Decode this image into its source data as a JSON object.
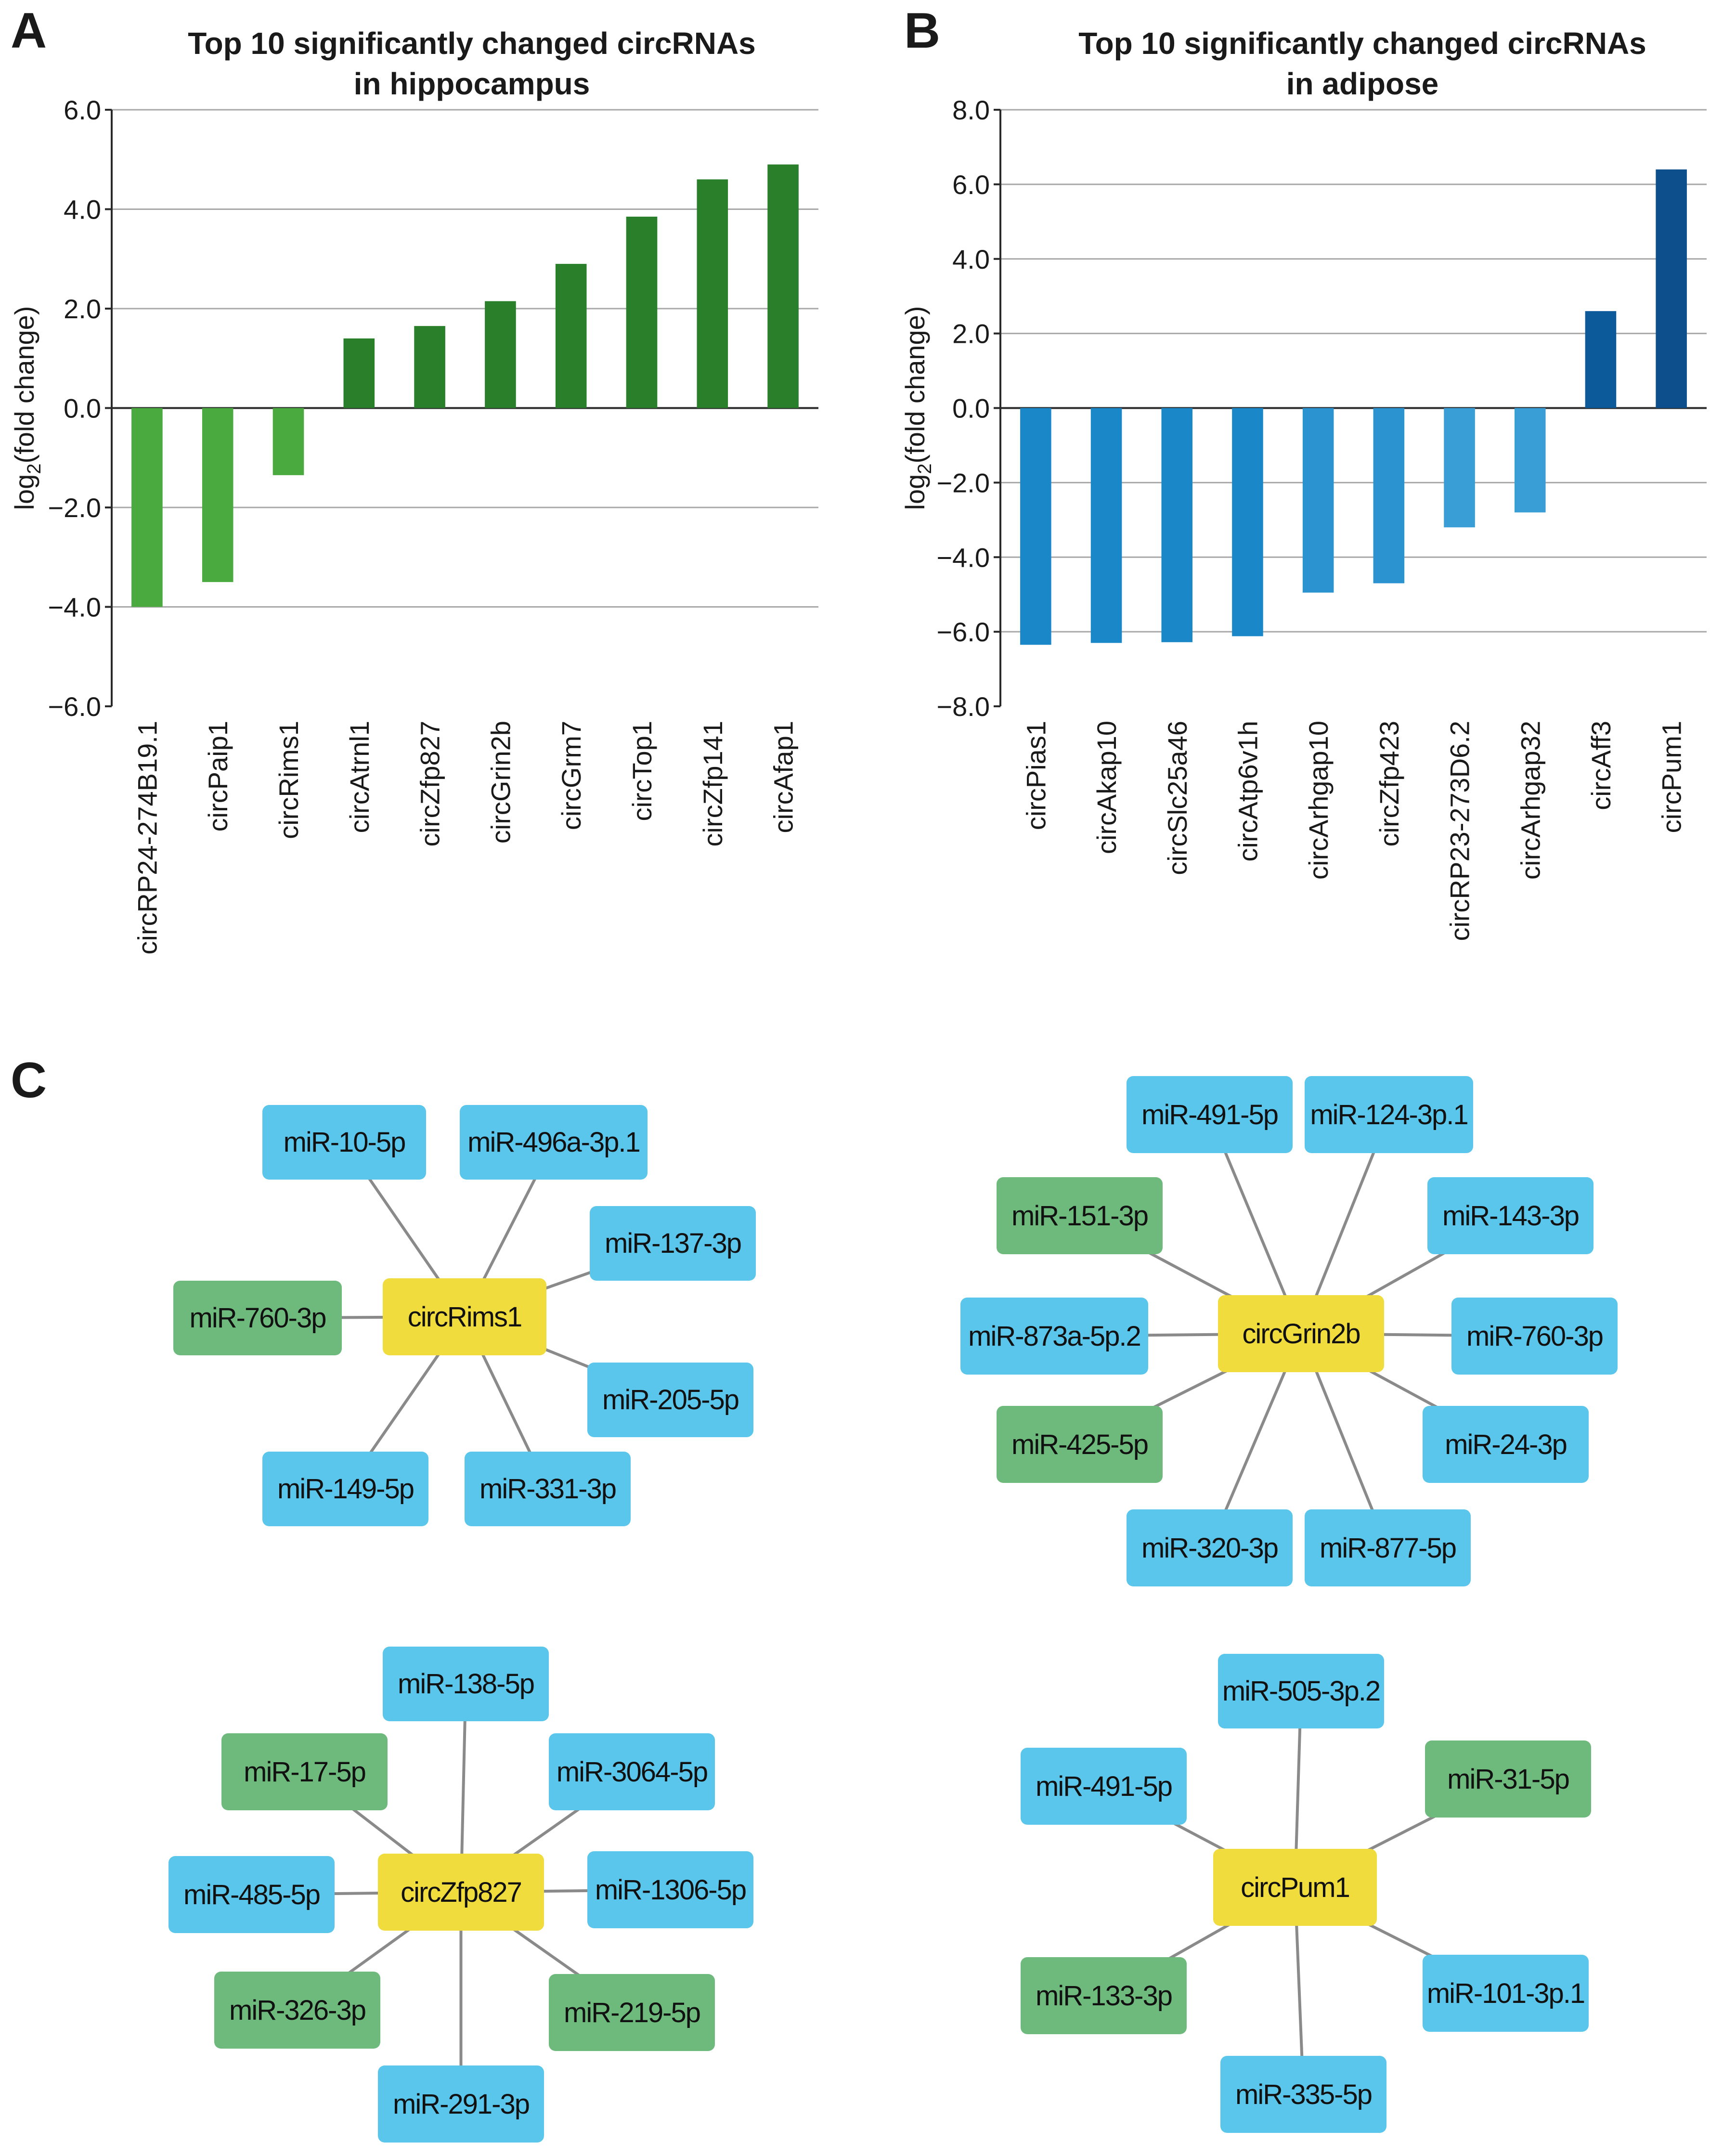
{
  "panels": {
    "a": "A",
    "b": "B",
    "c": "C"
  },
  "chart_data": [
    {
      "type": "bar",
      "title_line1": "Top 10 significantly changed circRNAs",
      "title_line2": "in hippocampus",
      "ylabel_pre": "log",
      "ylabel_sub": "2",
      "ylabel_post": "(fold change)",
      "ylim": [
        -6.0,
        6.0
      ],
      "yticks": [
        "6.0",
        "4.0",
        "2.0",
        "0.0",
        "−2.0",
        "−4.0",
        "−6.0"
      ],
      "ytick_values": [
        6,
        4,
        2,
        0,
        -2,
        -4,
        -6
      ],
      "gridlines": [
        6,
        4,
        2,
        0,
        -2,
        -4
      ],
      "categories": [
        "circRP24-274B19.1",
        "circPaip1",
        "circRims1",
        "circAtrnl1",
        "circZfp827",
        "circGrin2b",
        "circGrm7",
        "circTop1",
        "circZfp141",
        "circAfap1"
      ],
      "values": [
        -4.0,
        -3.5,
        -1.35,
        1.4,
        1.65,
        2.15,
        2.9,
        3.85,
        4.6,
        4.9
      ],
      "colors": [
        "#4aaa3f",
        "#4aaa3f",
        "#4aaa3f",
        "#2a7f2a",
        "#2a7f2a",
        "#2a7f2a",
        "#2a7f2a",
        "#2a7f2a",
        "#2a7f2a",
        "#2a7f2a"
      ]
    },
    {
      "type": "bar",
      "title_line1": "Top 10 significantly changed circRNAs",
      "title_line2": "in adipose",
      "ylabel_pre": "log",
      "ylabel_sub": "2",
      "ylabel_post": "(fold change)",
      "ylim": [
        -8.0,
        8.0
      ],
      "yticks": [
        "8.0",
        "6.0",
        "4.0",
        "2.0",
        "0.0",
        "−2.0",
        "−4.0",
        "−6.0",
        "−8.0"
      ],
      "ytick_values": [
        8,
        6,
        4,
        2,
        0,
        -2,
        -4,
        -6,
        -8
      ],
      "gridlines": [
        8,
        6,
        4,
        2,
        0,
        -2,
        -4,
        -6
      ],
      "categories": [
        "circPias1",
        "circAkap10",
        "circSlc25a46",
        "circAtp6v1h",
        "circArhgap10",
        "circZfp423",
        "circRP23-273D6.2",
        "circArhgap32",
        "circAff3",
        "circPum1"
      ],
      "values": [
        -6.35,
        -6.3,
        -6.28,
        -6.12,
        -4.95,
        -4.7,
        -3.2,
        -2.8,
        2.6,
        6.4
      ],
      "colors": [
        "#1a88c8",
        "#1a88c8",
        "#1a88c8",
        "#1a88c8",
        "#2a93d0",
        "#2a93d0",
        "#3a9ed6",
        "#3a9ed6",
        "#0c5a9a",
        "#0c4f8c"
      ]
    }
  ],
  "networks": [
    {
      "hub": "circRims1",
      "mirnas": [
        {
          "label": "miR-10-5p",
          "type": "blue"
        },
        {
          "label": "miR-496a-3p.1",
          "type": "blue"
        },
        {
          "label": "miR-137-3p",
          "type": "blue"
        },
        {
          "label": "miR-760-3p",
          "type": "green"
        },
        {
          "label": "miR-205-5p",
          "type": "blue"
        },
        {
          "label": "miR-149-5p",
          "type": "blue"
        },
        {
          "label": "miR-331-3p",
          "type": "blue"
        }
      ]
    },
    {
      "hub": "circGrin2b",
      "mirnas": [
        {
          "label": "miR-491-5p",
          "type": "blue"
        },
        {
          "label": "miR-124-3p.1",
          "type": "blue"
        },
        {
          "label": "miR-151-3p",
          "type": "green"
        },
        {
          "label": "miR-143-3p",
          "type": "blue"
        },
        {
          "label": "miR-873a-5p.2",
          "type": "blue"
        },
        {
          "label": "miR-760-3p",
          "type": "blue"
        },
        {
          "label": "miR-425-5p",
          "type": "green"
        },
        {
          "label": "miR-24-3p",
          "type": "blue"
        },
        {
          "label": "miR-320-3p",
          "type": "blue"
        },
        {
          "label": "miR-877-5p",
          "type": "blue"
        }
      ]
    },
    {
      "hub": "circZfp827",
      "mirnas": [
        {
          "label": "miR-138-5p",
          "type": "blue"
        },
        {
          "label": "miR-17-5p",
          "type": "green"
        },
        {
          "label": "miR-3064-5p",
          "type": "blue"
        },
        {
          "label": "miR-485-5p",
          "type": "blue"
        },
        {
          "label": "miR-1306-5p",
          "type": "blue"
        },
        {
          "label": "miR-326-3p",
          "type": "green"
        },
        {
          "label": "miR-219-5p",
          "type": "green"
        },
        {
          "label": "miR-291-3p",
          "type": "blue"
        }
      ]
    },
    {
      "hub": "circPum1",
      "mirnas": [
        {
          "label": "miR-505-3p.2",
          "type": "blue"
        },
        {
          "label": "miR-491-5p",
          "type": "blue"
        },
        {
          "label": "miR-31-5p",
          "type": "green"
        },
        {
          "label": "miR-133-3p",
          "type": "green"
        },
        {
          "label": "miR-101-3p.1",
          "type": "blue"
        },
        {
          "label": "miR-335-5p",
          "type": "blue"
        }
      ]
    }
  ]
}
